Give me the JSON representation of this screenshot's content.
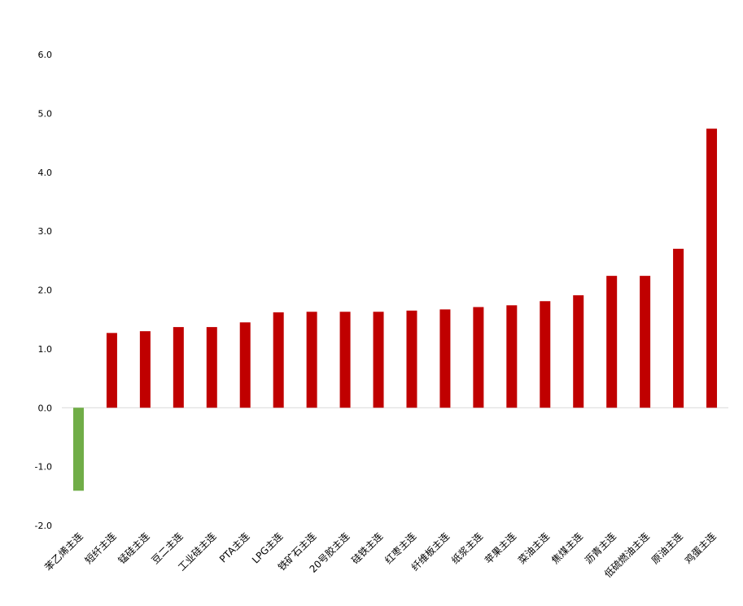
{
  "chart_data": {
    "type": "bar",
    "title": "",
    "xlabel": "",
    "ylabel": "",
    "ylim": [
      -2.0,
      6.0
    ],
    "ytick_step": 1.0,
    "yticks": [
      "-2.0",
      "-1.0",
      "0.0",
      "1.0",
      "2.0",
      "3.0",
      "4.0",
      "5.0",
      "6.0"
    ],
    "grid": false,
    "legend": "none",
    "positive_color": "#C00000",
    "negative_color": "#70AD47",
    "categories": [
      "苯乙烯主连",
      "短纤主连",
      "锰硅主连",
      "豆二主连",
      "工业硅主连",
      "PTA主连",
      "LPG主连",
      "铁矿石主连",
      "20号胶主连",
      "硅铁主连",
      "红枣主连",
      "纤维板主连",
      "纸浆主连",
      "苹果主连",
      "菜油主连",
      "焦煤主连",
      "沥青主连",
      "低硫燃油主连",
      "原油主连",
      "鸡蛋主连"
    ],
    "values": [
      -1.41,
      1.27,
      1.3,
      1.37,
      1.37,
      1.45,
      1.62,
      1.63,
      1.63,
      1.63,
      1.65,
      1.67,
      1.71,
      1.74,
      1.81,
      1.91,
      2.24,
      2.24,
      2.7,
      4.74
    ]
  }
}
